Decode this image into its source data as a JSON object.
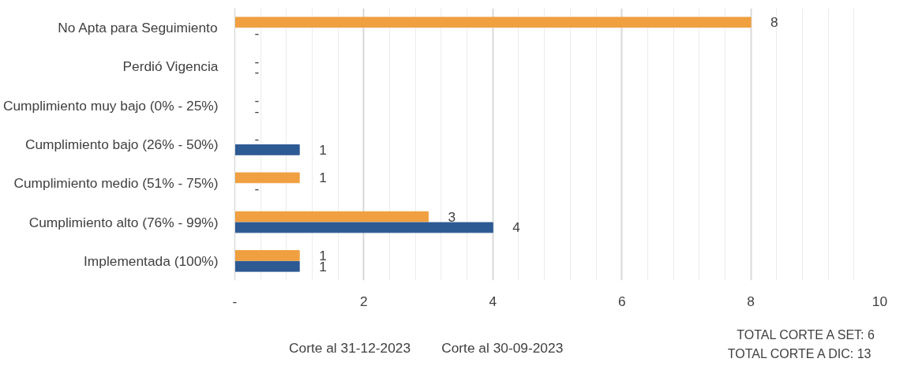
{
  "chart_data": {
    "type": "bar",
    "orientation": "horizontal",
    "categories": [
      "No Apta para Seguimiento",
      "Perdió Vigencia",
      "Cumplimiento muy bajo (0% - 25%)",
      "Cumplimiento bajo (26% - 50%)",
      "Cumplimiento medio (51% - 75%)",
      "Cumplimiento alto (76% - 99%)",
      "Implementada (100%)"
    ],
    "series": [
      {
        "name": "Corte al 31-12-2023",
        "color": "#f0a040",
        "values": [
          8,
          0,
          0,
          0,
          1,
          3,
          1
        ],
        "value_labels": [
          "8",
          "-",
          "-",
          "-",
          "1",
          "3",
          "1"
        ]
      },
      {
        "name": "Corte al 30-09-2023",
        "color": "#2e5a94",
        "values": [
          0,
          0,
          0,
          1,
          0,
          4,
          1
        ],
        "value_labels": [
          "-",
          "-",
          "-",
          "1",
          "-",
          "4",
          "1"
        ]
      }
    ],
    "xlim": [
      0,
      10
    ],
    "xticks": [
      {
        "value": 0,
        "label": "-"
      },
      2,
      4,
      6,
      8,
      10
    ],
    "grid": "x",
    "legend": "bottom",
    "annotations": [
      "TOTAL CORTE A SET: 6",
      "TOTAL CORTE A DIC:  13"
    ]
  }
}
